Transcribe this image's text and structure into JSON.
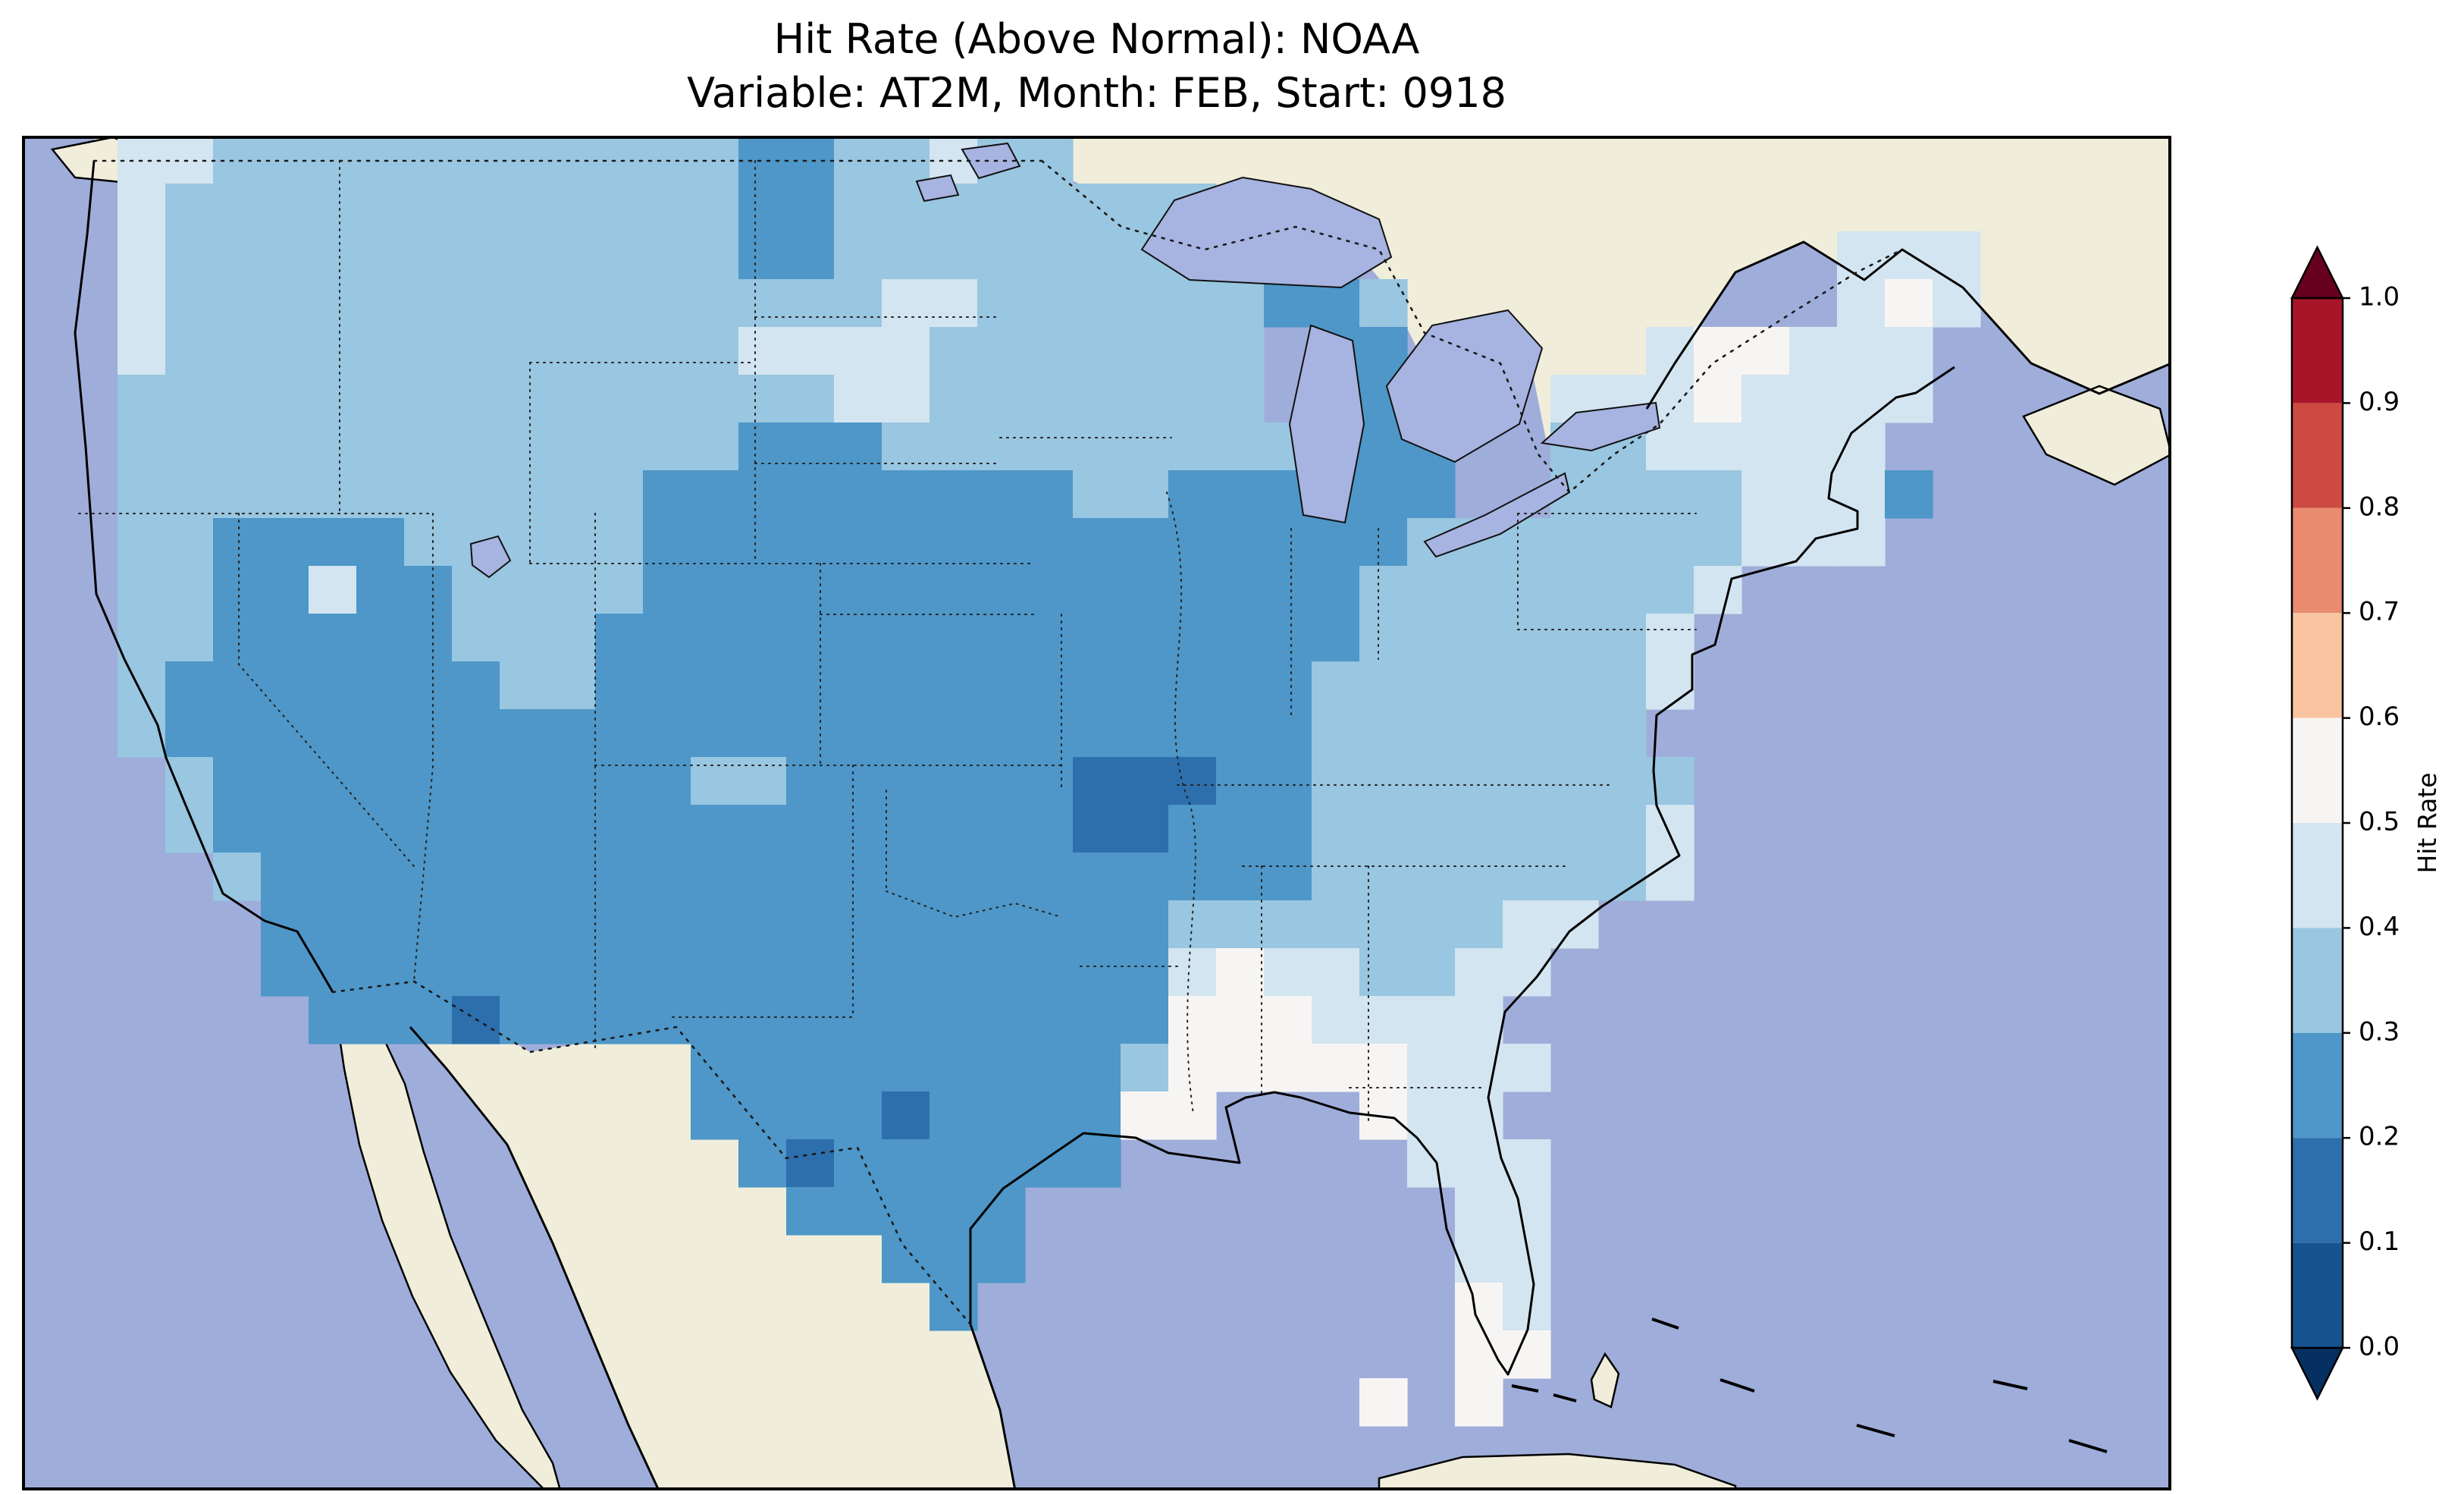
{
  "figure": {
    "title": "Hit Rate (Above Normal): NOAA",
    "subtitle": "Variable: AT2M, Month: FEB, Start: 0918"
  },
  "chart_data": {
    "type": "heatmap",
    "title": "Hit Rate (Above Normal): NOAA",
    "subtitle": "Variable: AT2M, Month: FEB, Start: 0918",
    "metric": "Hit Rate",
    "category": "Above Normal",
    "source": "NOAA",
    "variable": "AT2M",
    "month": "FEB",
    "start": "0918",
    "region": "Continental United States map (gridded hit-rate field over CONUS)",
    "legend_position": "right vertical colorbar",
    "colorbar": {
      "label": "Hit Rate",
      "ticks": [
        "0.0",
        "0.1",
        "0.2",
        "0.3",
        "0.4",
        "0.5",
        "0.6",
        "0.7",
        "0.8",
        "0.9",
        "1.0"
      ],
      "range": [
        0.0,
        1.0
      ],
      "extend": "both",
      "colors": [
        "#175290",
        "#2d6fad",
        "#4e97c8",
        "#99c6e0",
        "#d3e5f0",
        "#f7f5f3",
        "#f9c4a0",
        "#e88b6f",
        "#cc4a42",
        "#a81529"
      ],
      "under_color": "#053061",
      "over_color": "#67001f"
    },
    "value_bins": {
      "2": "0.1-0.2",
      "3": "0.2-0.3",
      "4": "0.3-0.4",
      "5": "0.4-0.5",
      "6": "0.5-0.6"
    },
    "code_colors": {
      "2": "#2d6fad",
      "3": "#4e97c8",
      "4": "#99c6e0",
      "5": "#d3e5f0",
      "6": "#f7f5f3"
    },
    "cell_size_px": 63,
    "grid_note": "Each character is one grid cell (~1 deg). '.'=no data (ocean/foreign land). Codes map to hit-rate bins in value_bins.",
    "grid_rows": [
      "..55444444444443344544.......................",
      "..54444444444443344444444....................",
      "..5444444444444334444444444...........555....",
      "..544444444444444455444444334.........565....",
      "..544444444444455554444444.33.....566555.....",
      "..444444444444444554444444.33...55565555.....",
      "..4444444444444333444444444333..4455555......",
      "..4444444444433333333344333333..44445553.....",
      "..4433334444433333333333333334444444555......",
      "..4433533444433333333333333344444445.........",
      "..443333344433333333333333334444445..........",
      "..433333334433333333333333344444445..........",
      "..43333333333333333333333334444444...........",
      "...43333333333443333332223344444444..........",
      "...43333333333333333332233344444445..........",
      "....4333333333333333333333344444445..........",
      ".....3333333333333333333444444455............",
      ".....333333333333333333356554455.............",
      "......3332333333333333336665555..............",
      "..............333333333466666555.............",
      "..............33332333366...655..............",
      "...............32333333......555.............",
      "................33333.........55.............",
      "..................333.........55.............",
      "...................3..........65.............",
      "..............................66.............",
      "............................6.6..............",
      "............................................."
    ],
    "map_colors": {
      "ocean": "#9fadda",
      "land": "#f0eedb",
      "lake": "#a7b3e0",
      "coastline": "#000000",
      "border_dotted": "#1a1a1a"
    }
  }
}
